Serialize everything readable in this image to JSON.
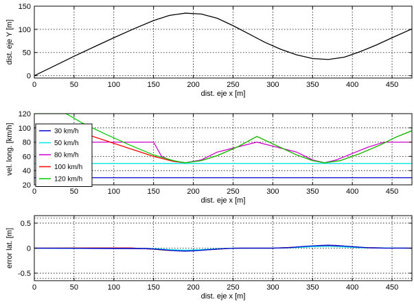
{
  "chart_data": [
    {
      "type": "line",
      "xlabel": "dist. eje x [m]",
      "ylabel": "dist. eje Y [m]",
      "xlim": [
        0,
        475
      ],
      "ylim": [
        -5,
        150
      ],
      "xticks": [
        0,
        50,
        100,
        150,
        200,
        250,
        300,
        350,
        400,
        450
      ],
      "yticks": [
        0,
        50,
        100,
        150
      ],
      "grid": true,
      "series": [
        {
          "color": "#000000",
          "x": [
            0,
            25,
            50,
            75,
            100,
            125,
            150,
            170,
            190,
            210,
            230,
            250,
            270,
            290,
            310,
            330,
            350,
            370,
            390,
            410,
            430,
            450,
            475
          ],
          "y": [
            0,
            21,
            42,
            62,
            82,
            101,
            119,
            130,
            135,
            133,
            124,
            108,
            90,
            72,
            57,
            45,
            37,
            35,
            40,
            52,
            66,
            82,
            101
          ]
        }
      ]
    },
    {
      "type": "line",
      "xlabel": "dist. eje x [m]",
      "ylabel": "vel. long. [km/h]",
      "xlim": [
        0,
        475
      ],
      "ylim": [
        20,
        120
      ],
      "xticks": [
        0,
        50,
        100,
        150,
        200,
        250,
        300,
        350,
        400,
        450
      ],
      "yticks": [
        20,
        40,
        60,
        80,
        100,
        120
      ],
      "grid": true,
      "legend_position": "left",
      "series": [
        {
          "name": "30 km/h",
          "color": "#0000cc",
          "x": [
            0,
            475
          ],
          "y": [
            30,
            30
          ]
        },
        {
          "name": "50 km/h",
          "color": "#00e5e5",
          "x": [
            0,
            475
          ],
          "y": [
            50,
            50
          ]
        },
        {
          "name": "80 km/h",
          "color": "#cc00cc",
          "x": [
            0,
            150,
            160,
            175,
            190,
            210,
            230,
            280,
            330,
            350,
            365,
            380,
            400,
            420,
            440,
            460,
            475
          ],
          "y": [
            80,
            80,
            60,
            53,
            51,
            55,
            66,
            80,
            66,
            55,
            51,
            55,
            64,
            73,
            80,
            80,
            80
          ]
        },
        {
          "name": "100 km/h",
          "color": "#ff0000",
          "x": [
            0,
            35,
            60,
            90,
            120,
            150,
            175,
            190,
            210,
            230,
            255,
            280,
            305,
            330,
            350,
            365,
            385,
            410,
            435,
            455,
            475
          ],
          "y": [
            100,
            100,
            93,
            82,
            71,
            60,
            53,
            51,
            54,
            61,
            73,
            88,
            75,
            62,
            54,
            51,
            54,
            64,
            76,
            87,
            96
          ]
        },
        {
          "name": "120 km/h",
          "color": "#00cc00",
          "x": [
            0,
            40,
            60,
            90,
            120,
            150,
            175,
            190,
            210,
            230,
            255,
            280,
            305,
            330,
            350,
            365,
            385,
            410,
            435,
            455,
            475
          ],
          "y": [
            120,
            120,
            107,
            91,
            76,
            62,
            54,
            51,
            54,
            61,
            73,
            88,
            75,
            62,
            54,
            51,
            54,
            64,
            76,
            87,
            96
          ]
        }
      ]
    },
    {
      "type": "line",
      "xlabel": "dist. eje x [m]",
      "ylabel": "error lat. [m]",
      "xlim": [
        0,
        475
      ],
      "ylim": [
        -0.65,
        0.65
      ],
      "xticks": [
        0,
        50,
        100,
        150,
        200,
        250,
        300,
        350,
        400,
        450
      ],
      "yticks": [
        -0.5,
        0,
        0.5
      ],
      "ytick_labels": [
        "-0.5",
        "0",
        "0.5"
      ],
      "grid": true,
      "series": [
        {
          "color": "#00cc00",
          "x": [
            0,
            120,
            150,
            170,
            190,
            210,
            230,
            250,
            300,
            330,
            350,
            370,
            390,
            410,
            475
          ],
          "y": [
            0,
            0.005,
            -0.02,
            -0.045,
            -0.05,
            -0.04,
            -0.02,
            0,
            0,
            0.02,
            0.04,
            0.045,
            0.035,
            0.01,
            0
          ]
        },
        {
          "color": "#ff0000",
          "x": [
            0,
            120,
            150,
            170,
            190,
            210,
            230,
            250,
            300,
            330,
            350,
            370,
            390,
            410,
            475
          ],
          "y": [
            0,
            0.005,
            -0.02,
            -0.045,
            -0.05,
            -0.04,
            -0.02,
            0,
            0,
            0.02,
            0.04,
            0.045,
            0.035,
            0.01,
            0
          ]
        },
        {
          "color": "#cc00cc",
          "x": [
            0,
            150,
            170,
            190,
            210,
            230,
            250,
            300,
            330,
            350,
            370,
            390,
            410,
            475
          ],
          "y": [
            0,
            -0.015,
            -0.035,
            -0.045,
            -0.035,
            -0.015,
            0,
            0,
            0.015,
            0.035,
            0.04,
            0.03,
            0.01,
            0
          ]
        },
        {
          "color": "#00e5e5",
          "x": [
            0,
            150,
            170,
            190,
            210,
            230,
            250,
            300,
            330,
            350,
            370,
            390,
            410,
            475
          ],
          "y": [
            0,
            -0.01,
            -0.03,
            -0.04,
            -0.03,
            -0.012,
            0,
            0,
            0.012,
            0.03,
            0.035,
            0.025,
            0.008,
            0
          ]
        },
        {
          "color": "#0000cc",
          "x": [
            0,
            140,
            160,
            180,
            190,
            200,
            220,
            240,
            260,
            300,
            320,
            340,
            360,
            370,
            380,
            400,
            420,
            440,
            475
          ],
          "y": [
            0,
            -0.005,
            -0.03,
            -0.055,
            -0.06,
            -0.055,
            -0.03,
            -0.008,
            0,
            0,
            0.01,
            0.035,
            0.055,
            0.06,
            0.055,
            0.03,
            0.008,
            0,
            0
          ]
        }
      ]
    }
  ]
}
